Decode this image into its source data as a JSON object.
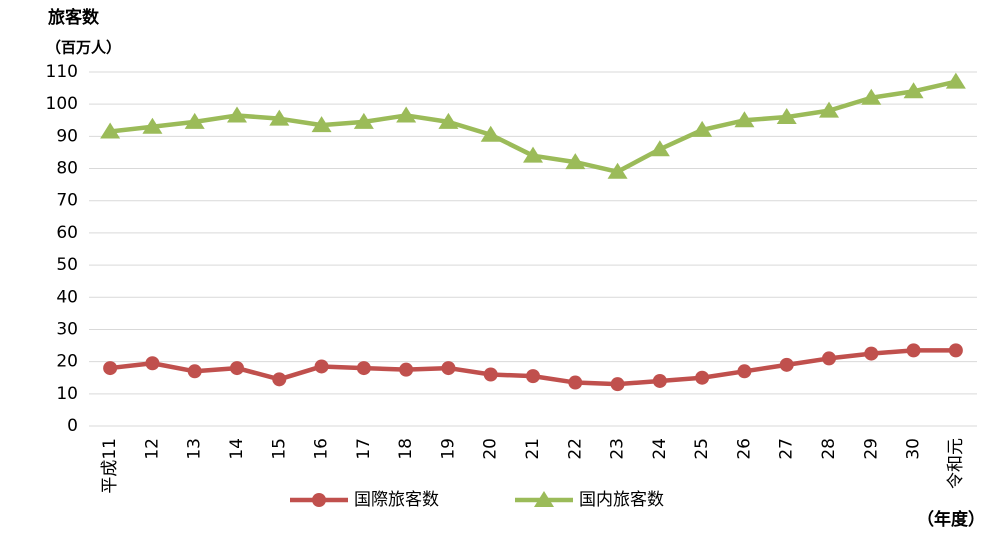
{
  "chart_data": {
    "type": "line",
    "title": "旅客数",
    "y_unit": "（百万人）",
    "x_label": "（年度）",
    "categories": [
      "平成11",
      "12",
      "13",
      "14",
      "15",
      "16",
      "17",
      "18",
      "19",
      "20",
      "21",
      "22",
      "23",
      "24",
      "25",
      "26",
      "27",
      "28",
      "29",
      "30",
      "令和元"
    ],
    "series": [
      {
        "name": "国際旅客数",
        "color": "#c0504d",
        "marker": "circle",
        "values": [
          18,
          19.5,
          17,
          18,
          14.5,
          18.5,
          18,
          17.5,
          18,
          16,
          15.5,
          13.5,
          13,
          14,
          15,
          17,
          19,
          21,
          22.5,
          23.5,
          23.5
        ]
      },
      {
        "name": "国内旅客数",
        "color": "#9bbb59",
        "marker": "triangle",
        "values": [
          91.5,
          93,
          94.5,
          96.5,
          95.5,
          93.5,
          94.5,
          96.5,
          94.5,
          90.5,
          84,
          82,
          79,
          86,
          92,
          95,
          96,
          98,
          102,
          104,
          107
        ]
      }
    ],
    "ylim": [
      0,
      110
    ],
    "yticks": [
      0,
      10,
      20,
      30,
      40,
      50,
      60,
      70,
      80,
      90,
      100,
      110
    ],
    "grid": true,
    "legend": "bottom"
  }
}
